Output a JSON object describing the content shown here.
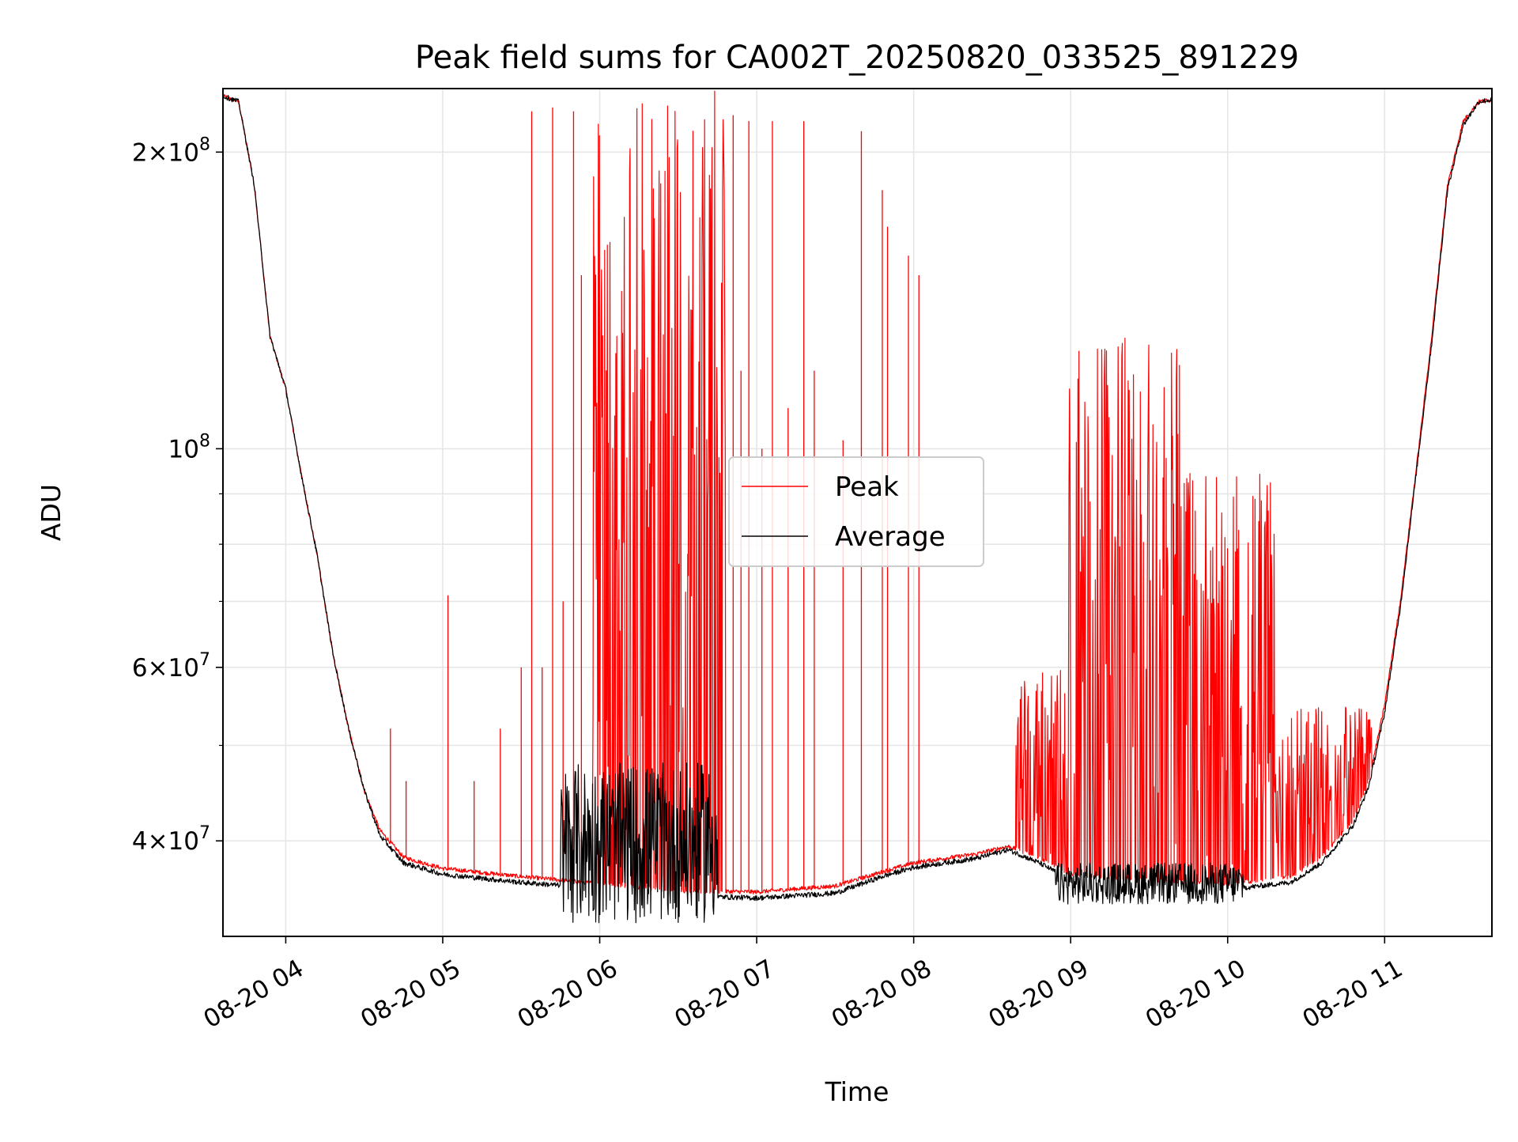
{
  "chart_data": {
    "type": "line",
    "title": "Peak field sums for CA002T_20250820_033525_891229",
    "xlabel": "Time",
    "ylabel": "ADU",
    "y_scale": "log",
    "grid": true,
    "legend_position": "center",
    "xlim": [
      "2025-08-20 03:36",
      "2025-08-20 11:41"
    ],
    "ylim": [
      32000000,
      232000000
    ],
    "x_ticks": [
      {
        "value": "2025-08-20 04:00",
        "label": "08-20 04"
      },
      {
        "value": "2025-08-20 05:00",
        "label": "08-20 05"
      },
      {
        "value": "2025-08-20 06:00",
        "label": "08-20 06"
      },
      {
        "value": "2025-08-20 07:00",
        "label": "08-20 07"
      },
      {
        "value": "2025-08-20 08:00",
        "label": "08-20 08"
      },
      {
        "value": "2025-08-20 09:00",
        "label": "08-20 09"
      },
      {
        "value": "2025-08-20 10:00",
        "label": "08-20 10"
      },
      {
        "value": "2025-08-20 11:00",
        "label": "08-20 11"
      }
    ],
    "y_ticks": [
      {
        "value": 40000000,
        "mantissa": "4",
        "exponent": "7"
      },
      {
        "value": 60000000,
        "mantissa": "6",
        "exponent": "7"
      },
      {
        "value": 100000000,
        "mantissa": "",
        "exponent": "8"
      },
      {
        "value": 200000000,
        "mantissa": "2",
        "exponent": "8"
      }
    ],
    "y_minor_ticks": [
      50000000,
      70000000,
      80000000,
      90000000
    ],
    "series": [
      {
        "name": "Peak",
        "color": "#ff0000",
        "baseline": [
          [
            "2025-08-20 03:36",
            228000000
          ],
          [
            "2025-08-20 03:42",
            225000000
          ],
          [
            "2025-08-20 03:48",
            185000000
          ],
          [
            "2025-08-20 03:54",
            130000000
          ],
          [
            "2025-08-20 04:00",
            115000000
          ],
          [
            "2025-08-20 04:06",
            94000000
          ],
          [
            "2025-08-20 04:12",
            78000000
          ],
          [
            "2025-08-20 04:18",
            62000000
          ],
          [
            "2025-08-20 04:24",
            52000000
          ],
          [
            "2025-08-20 04:30",
            45000000
          ],
          [
            "2025-08-20 04:36",
            41000000
          ],
          [
            "2025-08-20 04:45",
            38500000
          ],
          [
            "2025-08-20 05:00",
            37500000
          ],
          [
            "2025-08-20 05:30",
            36800000
          ],
          [
            "2025-08-20 06:00",
            36200000
          ],
          [
            "2025-08-20 06:30",
            35600000
          ],
          [
            "2025-08-20 07:00",
            35500000
          ],
          [
            "2025-08-20 07:30",
            36000000
          ],
          [
            "2025-08-20 07:48",
            37200000
          ],
          [
            "2025-08-20 08:00",
            38000000
          ],
          [
            "2025-08-20 08:24",
            38800000
          ],
          [
            "2025-08-20 08:36",
            39500000
          ],
          [
            "2025-08-20 08:48",
            38500000
          ],
          [
            "2025-08-20 09:00",
            37000000
          ],
          [
            "2025-08-20 09:30",
            36500000
          ],
          [
            "2025-08-20 10:00",
            36200000
          ],
          [
            "2025-08-20 10:24",
            36800000
          ],
          [
            "2025-08-20 10:36",
            38500000
          ],
          [
            "2025-08-20 10:48",
            42000000
          ],
          [
            "2025-08-20 10:54",
            46000000
          ],
          [
            "2025-08-20 11:00",
            55000000
          ],
          [
            "2025-08-20 11:06",
            70000000
          ],
          [
            "2025-08-20 11:12",
            95000000
          ],
          [
            "2025-08-20 11:18",
            130000000
          ],
          [
            "2025-08-20 11:24",
            185000000
          ],
          [
            "2025-08-20 11:30",
            215000000
          ],
          [
            "2025-08-20 11:36",
            225000000
          ],
          [
            "2025-08-20 11:41",
            226000000
          ]
        ],
        "dense_bursts": [
          {
            "from": "2025-08-20 05:57",
            "to": "2025-08-20 06:48",
            "max": 232000000
          },
          {
            "from": "2025-08-20 08:59",
            "to": "2025-08-20 09:42",
            "max": 130000000
          },
          {
            "from": "2025-08-20 09:42",
            "to": "2025-08-20 10:18",
            "max": 95000000
          },
          {
            "from": "2025-08-20 08:39",
            "to": "2025-08-20 08:59",
            "max": 60000000
          },
          {
            "from": "2025-08-20 10:18",
            "to": "2025-08-20 10:55",
            "max": 55000000
          }
        ],
        "spikes": [
          [
            "2025-08-20 04:40",
            52000000
          ],
          [
            "2025-08-20 04:46",
            46000000
          ],
          [
            "2025-08-20 05:02",
            71000000
          ],
          [
            "2025-08-20 05:12",
            46000000
          ],
          [
            "2025-08-20 05:22",
            52000000
          ],
          [
            "2025-08-20 05:30",
            60000000
          ],
          [
            "2025-08-20 05:34",
            220000000
          ],
          [
            "2025-08-20 05:38",
            60000000
          ],
          [
            "2025-08-20 05:42",
            222000000
          ],
          [
            "2025-08-20 05:46",
            70000000
          ],
          [
            "2025-08-20 05:50",
            220000000
          ],
          [
            "2025-08-20 05:53",
            150000000
          ],
          [
            "2025-08-20 06:51",
            218000000
          ],
          [
            "2025-08-20 06:54",
            120000000
          ],
          [
            "2025-08-20 06:57",
            215000000
          ],
          [
            "2025-08-20 07:02",
            100000000
          ],
          [
            "2025-08-20 07:06",
            215000000
          ],
          [
            "2025-08-20 07:12",
            110000000
          ],
          [
            "2025-08-20 07:18",
            215000000
          ],
          [
            "2025-08-20 07:22",
            120000000
          ],
          [
            "2025-08-20 07:33",
            102000000
          ],
          [
            "2025-08-20 07:40",
            210000000
          ],
          [
            "2025-08-20 07:48",
            183000000
          ],
          [
            "2025-08-20 07:50",
            168000000
          ],
          [
            "2025-08-20 07:58",
            157000000
          ],
          [
            "2025-08-20 08:02",
            150000000
          ]
        ]
      },
      {
        "name": "Average",
        "color": "#000000",
        "baseline": [
          [
            "2025-08-20 03:36",
            228000000
          ],
          [
            "2025-08-20 03:42",
            225000000
          ],
          [
            "2025-08-20 03:48",
            185000000
          ],
          [
            "2025-08-20 03:54",
            130000000
          ],
          [
            "2025-08-20 04:00",
            115000000
          ],
          [
            "2025-08-20 04:06",
            94000000
          ],
          [
            "2025-08-20 04:12",
            78000000
          ],
          [
            "2025-08-20 04:18",
            62000000
          ],
          [
            "2025-08-20 04:24",
            52000000
          ],
          [
            "2025-08-20 04:30",
            45000000
          ],
          [
            "2025-08-20 04:36",
            40500000
          ],
          [
            "2025-08-20 04:45",
            38000000
          ],
          [
            "2025-08-20 05:00",
            37000000
          ],
          [
            "2025-08-20 05:30",
            36300000
          ],
          [
            "2025-08-20 06:00",
            35800000
          ],
          [
            "2025-08-20 06:30",
            35200000
          ],
          [
            "2025-08-20 07:00",
            35000000
          ],
          [
            "2025-08-20 07:30",
            35400000
          ],
          [
            "2025-08-20 07:48",
            36800000
          ],
          [
            "2025-08-20 08:00",
            37600000
          ],
          [
            "2025-08-20 08:24",
            38400000
          ],
          [
            "2025-08-20 08:36",
            39200000
          ],
          [
            "2025-08-20 08:48",
            38000000
          ],
          [
            "2025-08-20 09:00",
            36500000
          ],
          [
            "2025-08-20 09:30",
            36000000
          ],
          [
            "2025-08-20 10:00",
            35700000
          ],
          [
            "2025-08-20 10:24",
            36300000
          ],
          [
            "2025-08-20 10:36",
            38000000
          ],
          [
            "2025-08-20 10:48",
            41500000
          ],
          [
            "2025-08-20 10:54",
            45500000
          ],
          [
            "2025-08-20 11:00",
            54000000
          ],
          [
            "2025-08-20 11:06",
            69000000
          ],
          [
            "2025-08-20 11:12",
            94000000
          ],
          [
            "2025-08-20 11:18",
            128000000
          ],
          [
            "2025-08-20 11:24",
            183000000
          ],
          [
            "2025-08-20 11:30",
            213000000
          ],
          [
            "2025-08-20 11:36",
            225000000
          ],
          [
            "2025-08-20 11:41",
            226000000
          ]
        ],
        "noisy_bursts": [
          {
            "from": "2025-08-20 05:45",
            "to": "2025-08-20 06:45",
            "max": 48000000,
            "min": 33000000
          },
          {
            "from": "2025-08-20 08:54",
            "to": "2025-08-20 10:06",
            "max": 38000000,
            "min": 34500000
          }
        ]
      }
    ]
  }
}
